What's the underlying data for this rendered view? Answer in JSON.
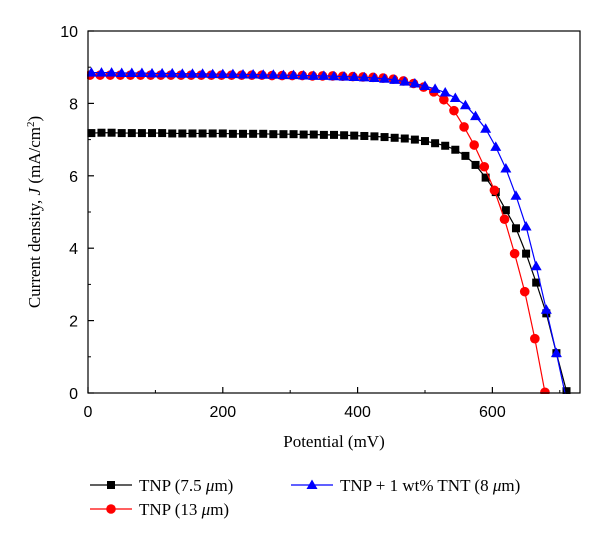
{
  "chart_data": {
    "type": "line",
    "xlabel": "Potential (mV)",
    "ylabel_main": "Current density, ",
    "ylabel_var": "J",
    "ylabel_unit_open": " (mA/cm",
    "ylabel_unit_sup": "2",
    "ylabel_unit_close": ")",
    "xlim": [
      0,
      730
    ],
    "ylim": [
      0,
      10
    ],
    "xticks": [
      "0",
      "200",
      "400",
      "600"
    ],
    "xtick_values": [
      0,
      200,
      400,
      600
    ],
    "yticks": [
      "0",
      "2",
      "4",
      "6",
      "8",
      "10"
    ],
    "ytick_values": [
      0,
      2,
      4,
      6,
      8,
      10
    ],
    "legend_position": "bottom",
    "series": [
      {
        "name_prefix": "TNP (7.5 ",
        "name_mu": "μ",
        "name_suffix": "m)",
        "color": "#000000",
        "marker": "square",
        "x": [
          5,
          20,
          35,
          50,
          65,
          80,
          95,
          110,
          125,
          140,
          155,
          170,
          185,
          200,
          215,
          230,
          245,
          260,
          275,
          290,
          305,
          320,
          335,
          350,
          365,
          380,
          395,
          410,
          425,
          440,
          455,
          470,
          485,
          500,
          515,
          530,
          545,
          560,
          575,
          590,
          605,
          620,
          635,
          650,
          665,
          680,
          695,
          710,
          722
        ],
        "y": [
          7.18,
          7.19,
          7.19,
          7.18,
          7.18,
          7.18,
          7.18,
          7.18,
          7.17,
          7.17,
          7.17,
          7.17,
          7.17,
          7.17,
          7.16,
          7.16,
          7.16,
          7.16,
          7.15,
          7.15,
          7.15,
          7.14,
          7.14,
          7.13,
          7.13,
          7.12,
          7.11,
          7.1,
          7.09,
          7.07,
          7.05,
          7.03,
          7.0,
          6.96,
          6.9,
          6.83,
          6.72,
          6.55,
          6.3,
          5.95,
          5.55,
          5.05,
          4.55,
          3.85,
          3.05,
          2.2,
          1.1,
          0.05,
          -0.2
        ]
      },
      {
        "name_prefix": "TNP (13 ",
        "name_mu": "μ",
        "name_suffix": "m)",
        "color": "#ff0000",
        "marker": "circle",
        "x": [
          3,
          18,
          33,
          48,
          63,
          78,
          93,
          108,
          123,
          138,
          153,
          168,
          183,
          198,
          213,
          228,
          243,
          258,
          273,
          288,
          303,
          318,
          333,
          348,
          363,
          378,
          393,
          408,
          423,
          438,
          453,
          468,
          483,
          498,
          513,
          528,
          543,
          558,
          573,
          588,
          603,
          618,
          633,
          648,
          663,
          678
        ],
        "y": [
          8.78,
          8.78,
          8.78,
          8.78,
          8.78,
          8.78,
          8.78,
          8.78,
          8.78,
          8.78,
          8.78,
          8.78,
          8.78,
          8.78,
          8.78,
          8.78,
          8.78,
          8.78,
          8.77,
          8.77,
          8.77,
          8.77,
          8.76,
          8.76,
          8.76,
          8.75,
          8.74,
          8.73,
          8.72,
          8.7,
          8.67,
          8.62,
          8.55,
          8.45,
          8.32,
          8.1,
          7.8,
          7.35,
          6.85,
          6.25,
          5.6,
          4.8,
          3.85,
          2.8,
          1.5,
          0.02
        ]
      },
      {
        "name_prefix": "TNP + 1 wt% TNT (8 ",
        "name_mu": "μ",
        "name_suffix": "m)",
        "color": "#0000ff",
        "marker": "triangle",
        "x": [
          5,
          20,
          35,
          50,
          65,
          80,
          95,
          110,
          125,
          140,
          155,
          170,
          185,
          200,
          215,
          230,
          245,
          260,
          275,
          290,
          305,
          320,
          335,
          350,
          365,
          380,
          395,
          410,
          425,
          440,
          455,
          470,
          485,
          500,
          515,
          530,
          545,
          560,
          575,
          590,
          605,
          620,
          635,
          650,
          665,
          680,
          695,
          710
        ],
        "y": [
          8.85,
          8.85,
          8.85,
          8.84,
          8.84,
          8.84,
          8.83,
          8.83,
          8.83,
          8.82,
          8.82,
          8.82,
          8.81,
          8.81,
          8.81,
          8.8,
          8.8,
          8.79,
          8.79,
          8.78,
          8.78,
          8.77,
          8.76,
          8.76,
          8.75,
          8.74,
          8.73,
          8.72,
          8.7,
          8.68,
          8.65,
          8.6,
          8.55,
          8.48,
          8.4,
          8.3,
          8.15,
          7.95,
          7.65,
          7.3,
          6.8,
          6.2,
          5.45,
          4.6,
          3.5,
          2.3,
          1.1,
          -0.2
        ]
      }
    ]
  }
}
